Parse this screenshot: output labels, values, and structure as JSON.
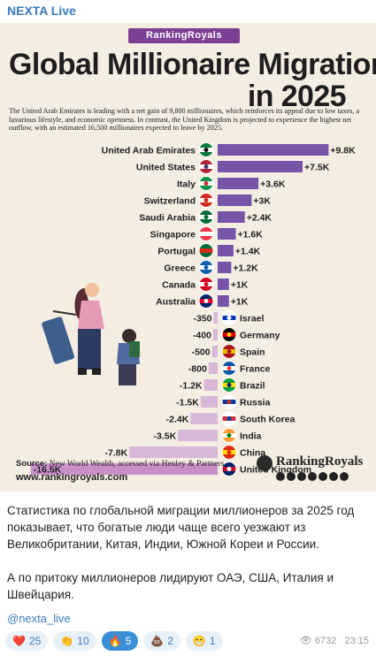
{
  "channel": "NEXTA Live",
  "poster": {
    "brand": "RankingRoyals",
    "title_line1": "Global Millionaire Migration",
    "title_line2": "in 2025",
    "description": "The United Arab Emirates is leading with a net gain of 9,800 millionaires, which reinforces its appeal due to low taxes, a luxurious lifestyle, and economic openness. In contrast, the United Kingdom is projected to experience the highest net outflow, with an estimated 16,500 millionaires expected to leave by 2025.",
    "source_label": "Source:",
    "source_text": " New World Wealth, accessed via Henley & Partners",
    "website": "www.rankingroyals.com",
    "logo_text": "RankingRoyals"
  },
  "chart_data": {
    "type": "bar",
    "title": "Global Millionaire Migration in 2025",
    "categories": [
      "United Arab Emirates",
      "United States",
      "Italy",
      "Switzerland",
      "Saudi Arabia",
      "Singapore",
      "Portugal",
      "Greece",
      "Canada",
      "Australia",
      "Israel",
      "Germany",
      "Spain",
      "France",
      "Brazil",
      "Russia",
      "South Korea",
      "India",
      "China",
      "United Kingdom"
    ],
    "values": [
      9800,
      7500,
      3600,
      3000,
      2400,
      1600,
      1400,
      1200,
      1000,
      1000,
      -350,
      -400,
      -500,
      -800,
      -1200,
      -1500,
      -2400,
      -3500,
      -7800,
      -16500
    ],
    "labels": [
      "+9.8K",
      "+7.5K",
      "+3.6K",
      "+3K",
      "+2.4K",
      "+1.6K",
      "+1.4K",
      "+1.2K",
      "+1K",
      "+1K",
      "-350",
      "-400",
      "-500",
      "-800",
      "-1.2K",
      "-1.5K",
      "-2.4K",
      "-3.5K",
      "-7.8K",
      "-16.5K"
    ],
    "colors": {
      "positive": "#7654a8",
      "negative": "#d7b8d9",
      "uk": "#c98fc9"
    },
    "legend": "none",
    "grid": false
  },
  "message": {
    "paragraph1": "Статистика по глобальной миграции миллионеров за 2025 год показывает, что богатые люди чаще всего уезжают из Великобритании, Китая, Индии, Южной Кореи и России.",
    "paragraph2": "А по притоку миллионеров лидируют ОАЭ, США, Италия и Швейцария.",
    "tag": "@nexta_live"
  },
  "reactions": [
    {
      "icon": "heart-icon",
      "emoji": "❤️",
      "count": "25"
    },
    {
      "icon": "clap-icon",
      "emoji": "👏",
      "count": "10"
    },
    {
      "icon": "fire-icon",
      "emoji": "🔥",
      "count": "5"
    },
    {
      "icon": "poop-icon",
      "emoji": "💩",
      "count": "2"
    },
    {
      "icon": "grin-icon",
      "emoji": "😁",
      "count": "1"
    }
  ],
  "views": "6732",
  "time": "23:15"
}
